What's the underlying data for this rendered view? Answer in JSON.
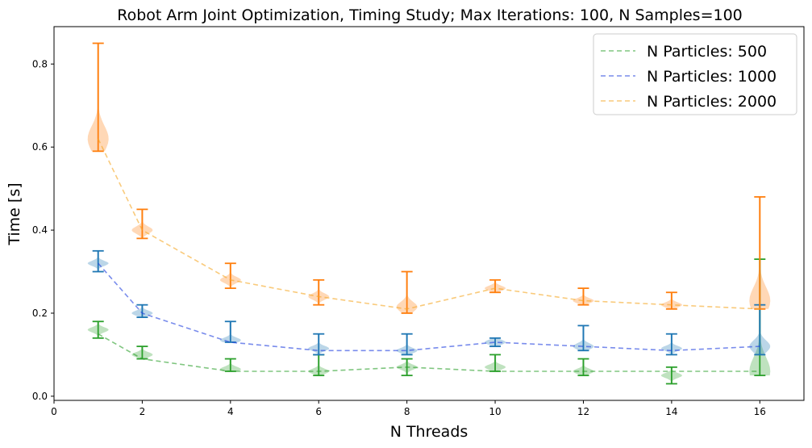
{
  "chart_data": {
    "type": "violin",
    "title": "Robot Arm Joint Optimization, Timing Study; Max Iterations: 100, N Samples=100",
    "xlabel": "N Threads",
    "ylabel": "Time [s]",
    "xlim": [
      0,
      17
    ],
    "ylim": [
      -0.01,
      0.89
    ],
    "xticks": [
      0,
      2,
      4,
      6,
      8,
      10,
      12,
      14,
      16
    ],
    "yticks": [
      0.0,
      0.2,
      0.4,
      0.6,
      0.8
    ],
    "legend_position": "top-right",
    "x": [
      1,
      2,
      4,
      6,
      8,
      10,
      12,
      14,
      16
    ],
    "series": [
      {
        "name": "N Particles: 500",
        "line_color": "#2ca02c",
        "violin_color": "#2ca02c",
        "mean": [
          0.15,
          0.09,
          0.06,
          0.06,
          0.07,
          0.06,
          0.06,
          0.06,
          0.06
        ],
        "min": [
          0.14,
          0.09,
          0.06,
          0.05,
          0.05,
          0.06,
          0.05,
          0.03,
          0.05
        ],
        "max": [
          0.18,
          0.12,
          0.09,
          0.1,
          0.09,
          0.1,
          0.09,
          0.07,
          0.33
        ],
        "mode": [
          0.16,
          0.1,
          0.065,
          0.06,
          0.07,
          0.07,
          0.06,
          0.05,
          0.06
        ]
      },
      {
        "name": "N Particles: 1000",
        "line_color": "#1f3fe0",
        "violin_color": "#1f77b4",
        "mean": [
          0.32,
          0.2,
          0.13,
          0.11,
          0.11,
          0.13,
          0.12,
          0.11,
          0.12
        ],
        "min": [
          0.3,
          0.19,
          0.13,
          0.1,
          0.1,
          0.12,
          0.11,
          0.1,
          0.1
        ],
        "max": [
          0.35,
          0.22,
          0.18,
          0.15,
          0.15,
          0.14,
          0.17,
          0.15,
          0.22
        ],
        "mode": [
          0.32,
          0.2,
          0.135,
          0.115,
          0.11,
          0.13,
          0.12,
          0.115,
          0.12
        ]
      },
      {
        "name": "N Particles: 2000",
        "line_color": "#f5a623",
        "violin_color": "#ff7f0e",
        "mean": [
          0.62,
          0.4,
          0.28,
          0.24,
          0.21,
          0.26,
          0.23,
          0.22,
          0.21
        ],
        "min": [
          0.59,
          0.38,
          0.26,
          0.22,
          0.2,
          0.25,
          0.22,
          0.21,
          0.21
        ],
        "max": [
          0.85,
          0.45,
          0.32,
          0.28,
          0.3,
          0.28,
          0.26,
          0.25,
          0.48
        ],
        "mode": [
          0.62,
          0.4,
          0.28,
          0.24,
          0.215,
          0.26,
          0.23,
          0.22,
          0.23
        ]
      }
    ]
  }
}
